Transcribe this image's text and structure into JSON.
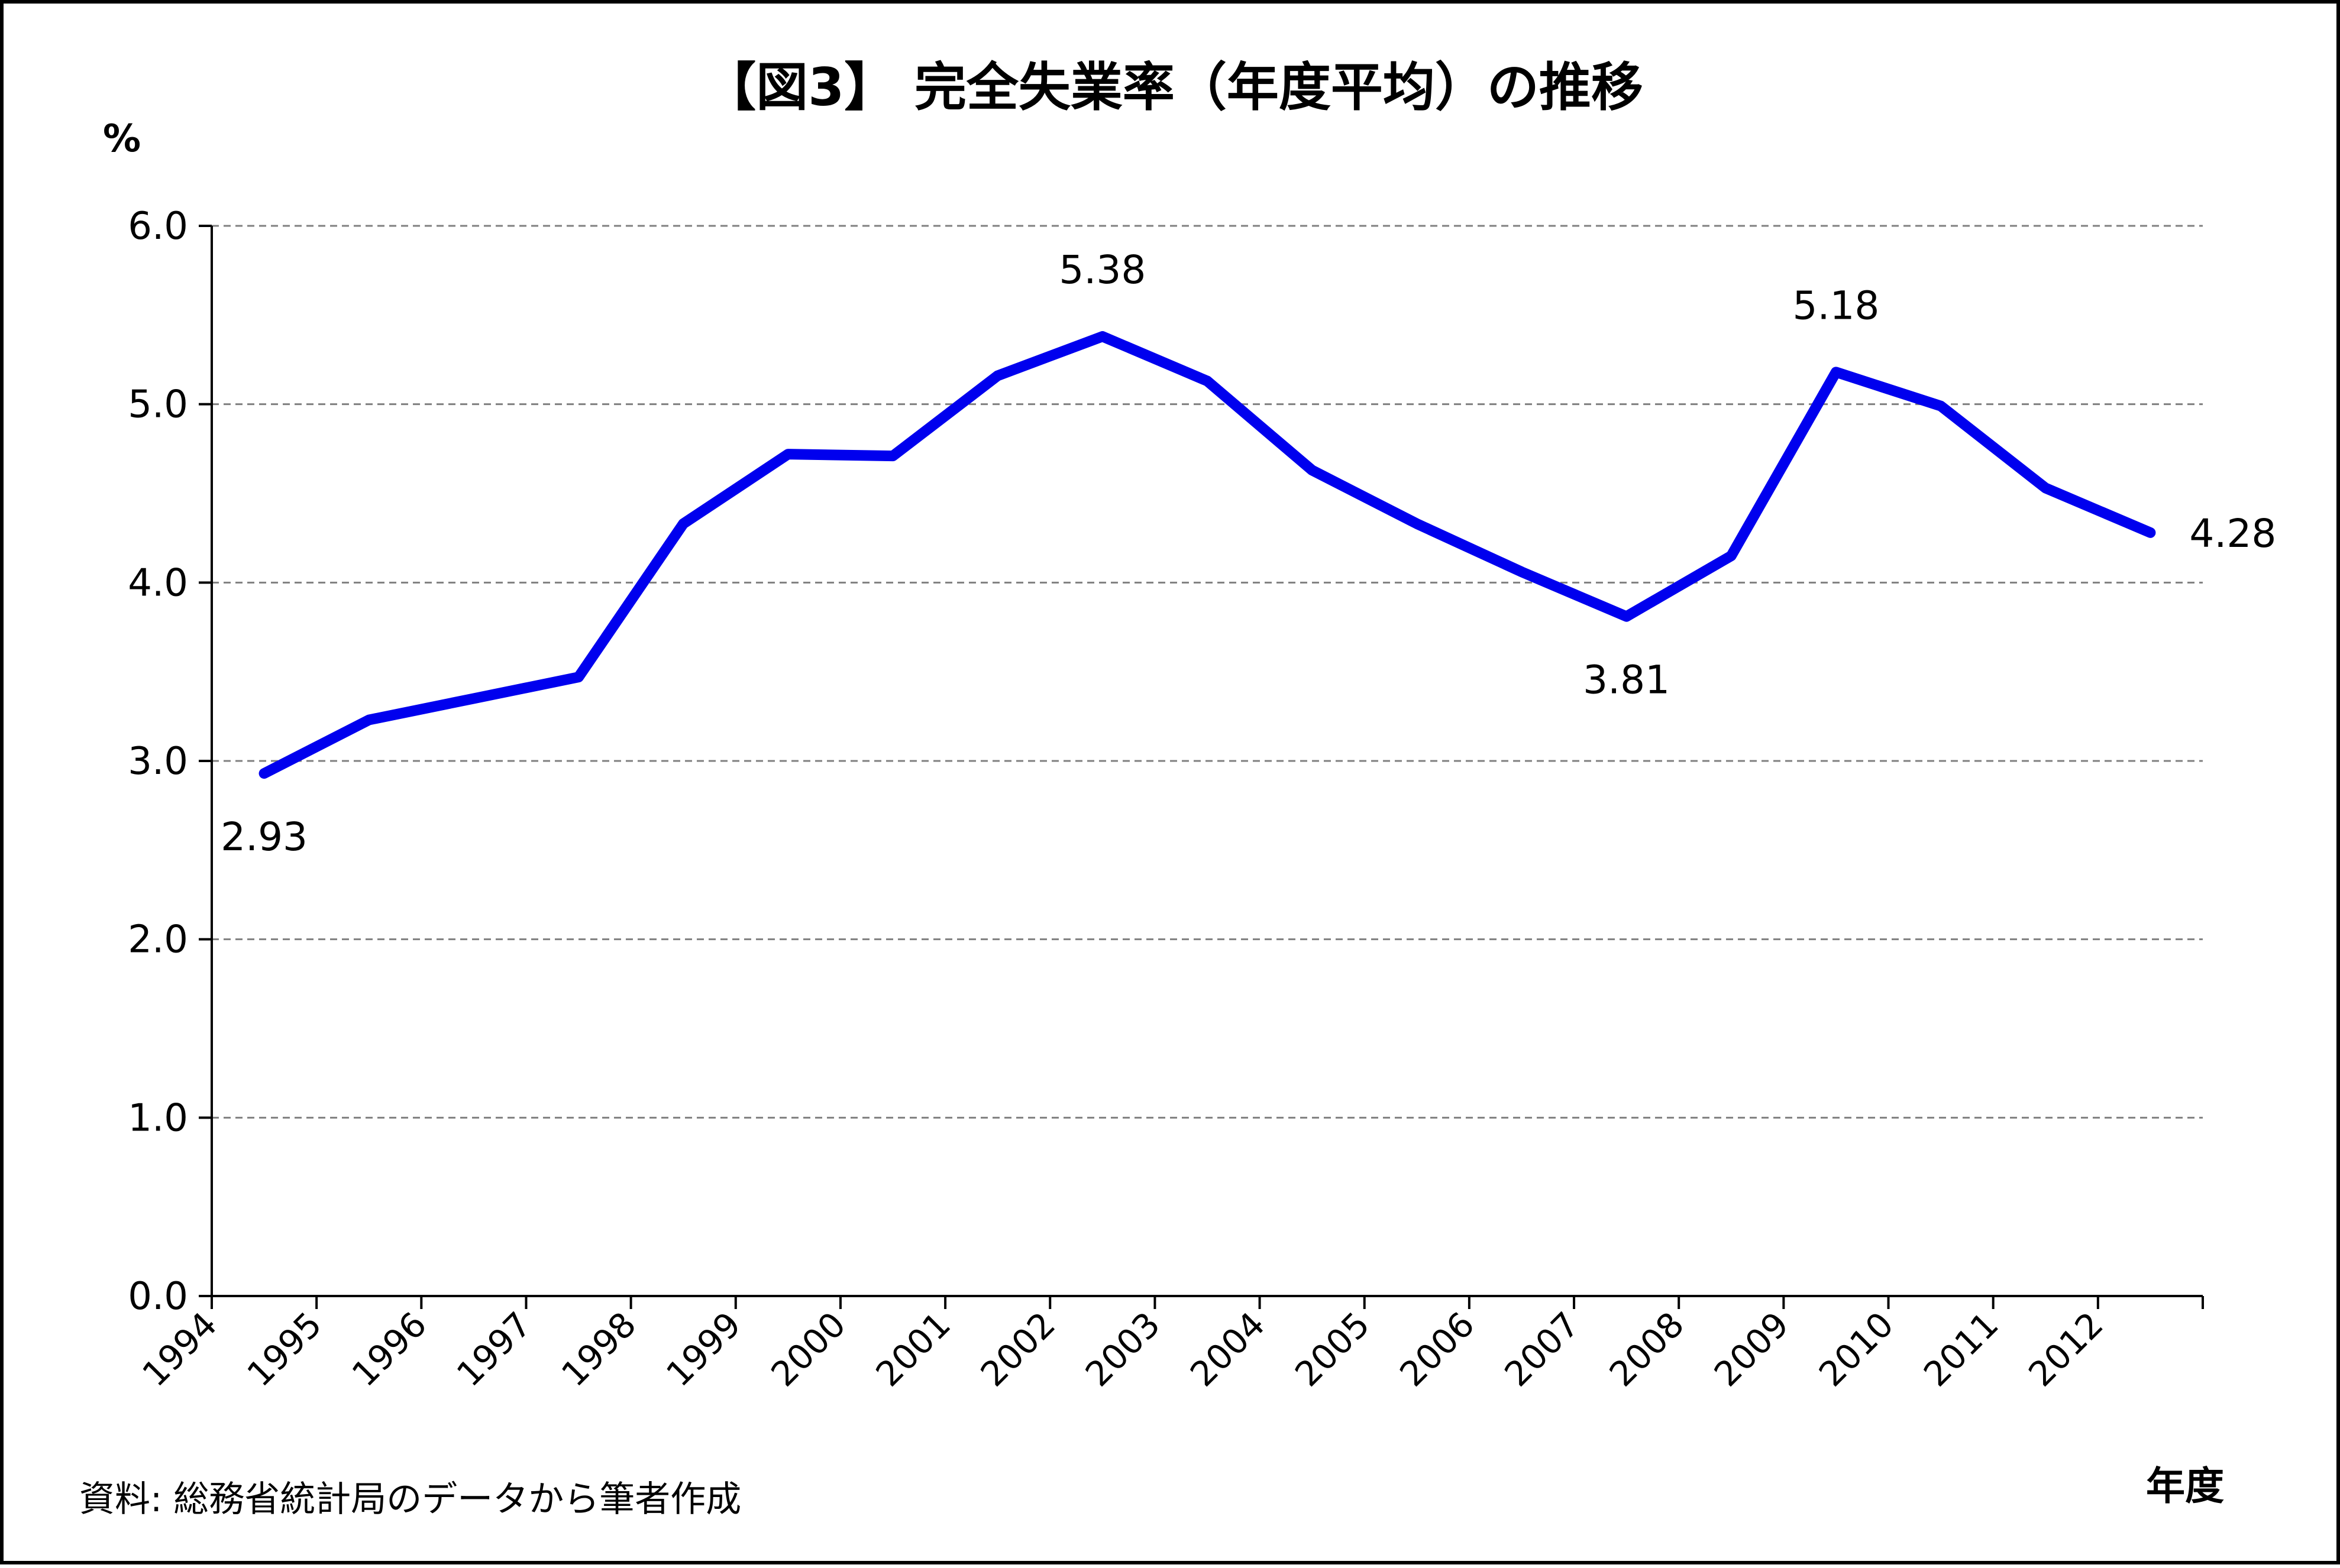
{
  "chart_data": {
    "type": "line",
    "title": "【図3】 完全失業率（年度平均）の推移",
    "ylabel": "%",
    "xlabel": "年度",
    "source": "資料: 総務省統計局のデータから筆者作成",
    "ylim": [
      0,
      6
    ],
    "yticks": [
      "0.0",
      "1.0",
      "2.0",
      "3.0",
      "4.0",
      "5.0",
      "6.0"
    ],
    "grid": "horizontal dashed",
    "legend": "none",
    "categories": [
      "1994",
      "1995",
      "1996",
      "1997",
      "1998",
      "1999",
      "2000",
      "2001",
      "2002",
      "2003",
      "2004",
      "2005",
      "2006",
      "2007",
      "2008",
      "2009",
      "2010",
      "2011",
      "2012"
    ],
    "series": [
      {
        "values": [
          2.93,
          3.23,
          3.35,
          3.47,
          4.33,
          4.72,
          4.71,
          5.16,
          5.38,
          5.13,
          4.63,
          4.33,
          4.06,
          3.81,
          4.15,
          5.18,
          4.99,
          4.53,
          4.28
        ],
        "color": "#0000ee"
      }
    ],
    "data_labels": [
      {
        "category": "1994",
        "text": "2.93",
        "position": "below"
      },
      {
        "category": "2002",
        "text": "5.38",
        "position": "above"
      },
      {
        "category": "2007",
        "text": "3.81",
        "position": "below"
      },
      {
        "category": "2009",
        "text": "5.18",
        "position": "above"
      },
      {
        "category": "2012",
        "text": "4.28",
        "position": "right"
      }
    ]
  }
}
